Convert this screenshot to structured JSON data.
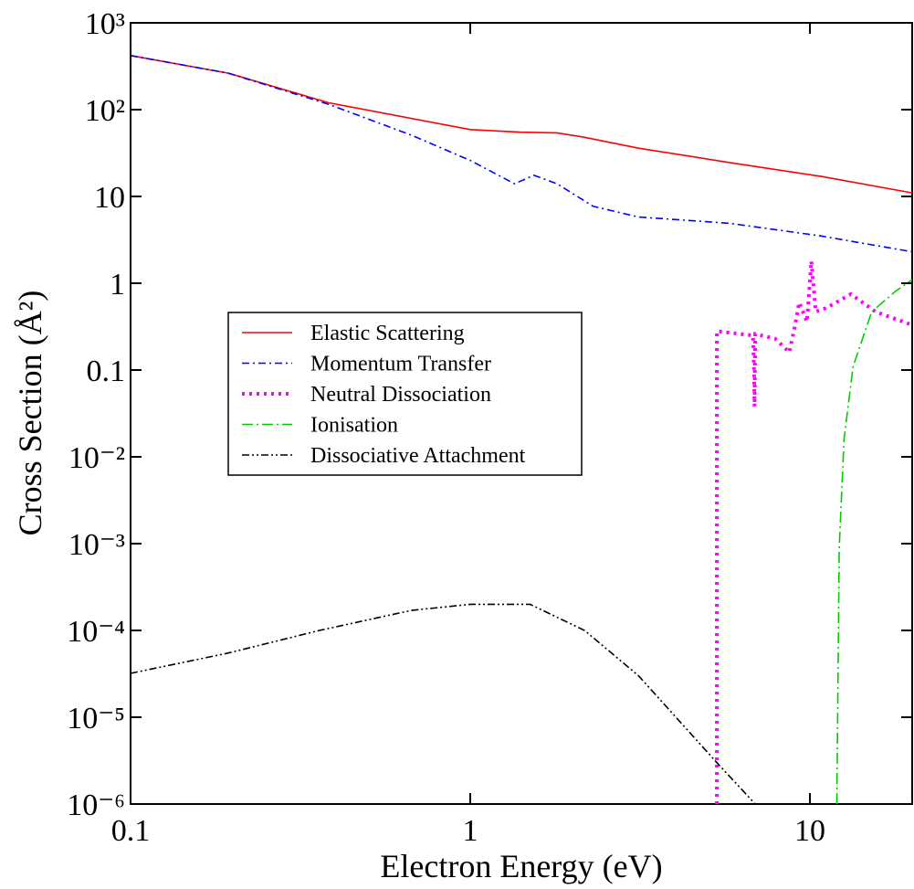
{
  "chart_data": {
    "type": "line",
    "x_label": "Electron Energy (eV)",
    "y_label": "Cross Section (Å²)",
    "xscale": "log",
    "yscale": "log",
    "xlim": [
      0.1,
      20
    ],
    "ylim": [
      1e-06,
      1000
    ],
    "xticks": [
      0.1,
      1,
      10
    ],
    "yticks": [
      {
        "value": 1e-06,
        "label": "10⁻⁶"
      },
      {
        "value": 1e-05,
        "label": "10⁻⁵"
      },
      {
        "value": 0.0001,
        "label": "10⁻⁴"
      },
      {
        "value": 0.001,
        "label": "10⁻³"
      },
      {
        "value": 0.01,
        "label": "10⁻²"
      },
      0.1,
      1,
      10,
      {
        "value": 100,
        "label": "10²"
      },
      {
        "value": 1000,
        "label": "10³"
      }
    ],
    "legend": "center left",
    "series": [
      {
        "name": "Elastic Scattering",
        "color": "#ff0000",
        "linestyle": "solid",
        "x": [
          0.1,
          0.194,
          0.383,
          1,
          1.41,
          1.8,
          2.17,
          3.13,
          5.8,
          10.8,
          20
        ],
        "values": [
          420,
          263,
          120,
          59,
          55,
          54,
          48,
          36,
          24.6,
          17,
          11
        ]
      },
      {
        "name": "Momentum Transfer",
        "color": "#0000ff",
        "linestyle": "dash-dot",
        "x": [
          0.1,
          0.194,
          0.383,
          0.67,
          1,
          1.35,
          1.54,
          1.8,
          2.3,
          3.13,
          5.8,
          10.8,
          20
        ],
        "values": [
          420,
          263,
          115,
          51,
          26,
          14,
          17.5,
          14,
          7.7,
          5.8,
          4.9,
          3.5,
          2.3
        ]
      },
      {
        "name": "Neutral Dissociation",
        "color": "#ff00ff",
        "linestyle": "dotted",
        "x": [
          5.32,
          5.32,
          6.8,
          6.85,
          6.87,
          6.9,
          7.9,
          8.7,
          9.0,
          9.3,
          9.8,
          10.1,
          10.4,
          11.2,
          13.2,
          15.6,
          20
        ],
        "values": [
          1e-06,
          0.28,
          0.25,
          0.09,
          0.038,
          0.26,
          0.23,
          0.16,
          0.3,
          0.6,
          0.36,
          1.8,
          0.47,
          0.52,
          0.75,
          0.47,
          0.33
        ]
      },
      {
        "name": "Ionisation",
        "color": "#00cc00",
        "linestyle": "dash-dot-long",
        "x": [
          12.0,
          12.2,
          12.6,
          13.4,
          15.2,
          17.8,
          20
        ],
        "values": [
          1e-06,
          0.00089,
          0.016,
          0.11,
          0.47,
          0.8,
          1.1
        ]
      },
      {
        "name": "Dissociative Attachment",
        "color": "#000000",
        "linestyle": "dash-dot-dot",
        "x": [
          0.1,
          0.194,
          0.36,
          0.67,
          1,
          1.5,
          2.17,
          3.13,
          5.32,
          6.9
        ],
        "values": [
          3.2e-05,
          5.5e-05,
          0.0001,
          0.00017,
          0.0002,
          0.0002,
          0.0001,
          3e-05,
          3e-06,
          1e-06
        ]
      }
    ]
  }
}
